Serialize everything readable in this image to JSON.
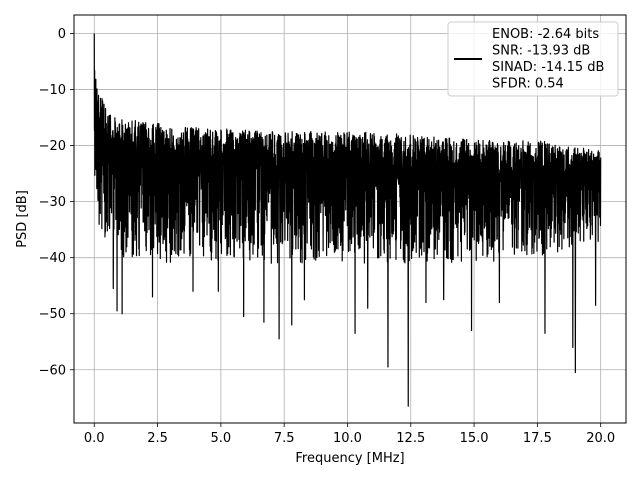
{
  "chart_data": {
    "type": "line",
    "title": "",
    "xlabel": "Frequency [MHz]",
    "ylabel": "PSD [dB]",
    "xlim": [
      -0.8,
      21.0
    ],
    "ylim": [
      -69.5,
      3.3
    ],
    "xticks": [
      0.0,
      2.5,
      5.0,
      7.5,
      10.0,
      12.5,
      15.0,
      17.5,
      20.0
    ],
    "xtick_labels": [
      "0.0",
      "2.5",
      "5.0",
      "7.5",
      "10.0",
      "12.5",
      "15.0",
      "17.5",
      "20.0"
    ],
    "yticks": [
      0,
      -10,
      -20,
      -30,
      -40,
      -50,
      -60
    ],
    "ytick_labels": [
      "0",
      "−10",
      "−20",
      "−30",
      "−40",
      "−50",
      "−60"
    ],
    "grid": true,
    "legend_position": "top-right",
    "legend_entries": [
      "ENOB: -2.64 bits",
      "SNR: -13.93 dB",
      "SINAD: -14.15 dB",
      "SFDR: 0.54"
    ],
    "series_color": "#000000",
    "series": [
      {
        "x_range": [
          0.0,
          20.0
        ],
        "envelope": {
          "x": [
            0.0,
            0.1,
            0.2,
            0.5,
            1.0,
            2.0,
            3.0,
            5.0,
            7.5,
            10.0,
            12.5,
            15.0,
            17.5,
            20.0
          ],
          "upper": [
            0.0,
            -9.0,
            -10.0,
            -14.0,
            -15.0,
            -15.5,
            -16.5,
            -17.0,
            -17.5,
            -17.5,
            -18.0,
            -19.0,
            -19.0,
            -21.0
          ],
          "lower": [
            -24.0,
            -30.0,
            -35.0,
            -38.0,
            -40.0,
            -40.0,
            -41.0,
            -41.0,
            -41.0,
            -41.0,
            -41.0,
            -41.0,
            -40.0,
            -37.0
          ]
        },
        "deep_minima": [
          {
            "x": 0.75,
            "y": -45.5
          },
          {
            "x": 0.9,
            "y": -49.5
          },
          {
            "x": 1.1,
            "y": -50.0
          },
          {
            "x": 2.3,
            "y": -47.0
          },
          {
            "x": 3.9,
            "y": -46.0
          },
          {
            "x": 4.9,
            "y": -46.0
          },
          {
            "x": 5.9,
            "y": -50.5
          },
          {
            "x": 6.7,
            "y": -51.5
          },
          {
            "x": 7.3,
            "y": -54.5
          },
          {
            "x": 7.8,
            "y": -52.0
          },
          {
            "x": 8.3,
            "y": -47.5
          },
          {
            "x": 10.3,
            "y": -53.5
          },
          {
            "x": 10.8,
            "y": -49.0
          },
          {
            "x": 11.6,
            "y": -59.5
          },
          {
            "x": 12.4,
            "y": -66.5
          },
          {
            "x": 13.1,
            "y": -48.0
          },
          {
            "x": 13.8,
            "y": -47.5
          },
          {
            "x": 14.9,
            "y": -53.0
          },
          {
            "x": 16.0,
            "y": -48.0
          },
          {
            "x": 17.8,
            "y": -53.5
          },
          {
            "x": 18.9,
            "y": -56.0
          },
          {
            "x": 19.0,
            "y": -60.5
          },
          {
            "x": 19.8,
            "y": -48.5
          }
        ]
      }
    ]
  }
}
